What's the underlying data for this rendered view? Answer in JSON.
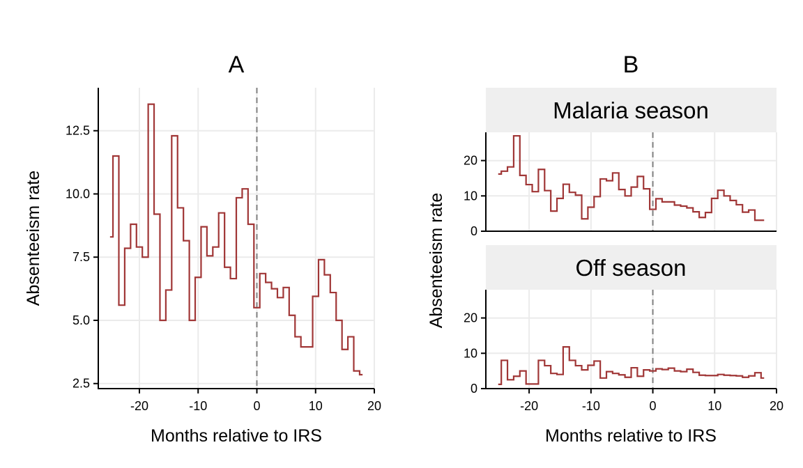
{
  "colors": {
    "series": "#a03636",
    "strip_bg": "#efefef",
    "reference_line": "#7f7f7f",
    "grid": "#ebebeb"
  },
  "chart_data": [
    {
      "type": "line",
      "style": "step",
      "title": "A",
      "xlabel": "Months relative to IRS",
      "ylabel": "Absenteeism rate",
      "xlim": [
        -27,
        20
      ],
      "ylim": [
        2.3,
        14.2
      ],
      "xticks": [
        -20,
        -10,
        0,
        10,
        20
      ],
      "xtick_labels": [
        "-20",
        "-10",
        "0",
        "10",
        "20"
      ],
      "yticks": [
        2.5,
        5.0,
        7.5,
        10.0,
        12.5
      ],
      "ytick_labels": [
        "2.5",
        "5.0",
        "7.5",
        "10.0",
        "12.5"
      ],
      "reference_line": {
        "x": 0,
        "style": "dashed"
      },
      "grid": true,
      "x": [
        -25,
        -24,
        -23,
        -22,
        -21,
        -20,
        -19,
        -18,
        -17,
        -16,
        -15,
        -14,
        -13,
        -12,
        -11,
        -10,
        -9,
        -8,
        -7,
        -6,
        -5,
        -4,
        -3,
        -2,
        -1,
        0,
        1,
        2,
        3,
        4,
        5,
        6,
        7,
        8,
        9,
        10,
        11,
        12,
        13,
        14,
        15,
        16,
        17,
        18
      ],
      "values": [
        8.3,
        11.5,
        5.6,
        7.85,
        8.8,
        7.9,
        7.5,
        13.55,
        9.2,
        5.0,
        6.2,
        12.3,
        9.45,
        8.15,
        5.0,
        6.7,
        8.7,
        7.55,
        7.9,
        9.25,
        7.1,
        6.65,
        9.85,
        10.2,
        8.8,
        5.5,
        6.85,
        6.5,
        6.25,
        5.9,
        6.3,
        5.2,
        4.35,
        3.95,
        3.95,
        5.95,
        7.4,
        6.8,
        6.1,
        5.0,
        3.85,
        4.35,
        3.0,
        2.85
      ]
    },
    {
      "type": "line",
      "style": "step",
      "title": "B",
      "xlabel": "Months relative to IRS",
      "ylabel": "Absenteeism rate",
      "xlim": [
        -27,
        20
      ],
      "ylim": [
        0,
        28
      ],
      "xticks": [
        -20,
        -10,
        0,
        10,
        20
      ],
      "xtick_labels": [
        "-20",
        "-10",
        "0",
        "10",
        "20"
      ],
      "yticks": [
        0,
        10,
        20
      ],
      "ytick_labels": [
        "0",
        "10",
        "20"
      ],
      "reference_line": {
        "x": 0,
        "style": "dashed"
      },
      "grid": true,
      "facets": [
        {
          "label": "Malaria season",
          "x": [
            -25,
            -24,
            -23,
            -22,
            -21,
            -20,
            -19,
            -18,
            -17,
            -16,
            -15,
            -14,
            -13,
            -12,
            -11,
            -10,
            -9,
            -8,
            -7,
            -6,
            -5,
            -4,
            -3,
            -2,
            -1,
            0,
            1,
            2,
            3,
            4,
            5,
            6,
            7,
            8,
            9,
            10,
            11,
            12,
            13,
            14,
            15,
            16,
            17,
            18
          ],
          "values": [
            16.2,
            17.0,
            18.2,
            27.0,
            15.8,
            13.2,
            11.2,
            17.5,
            11.5,
            5.7,
            9.3,
            13.3,
            11.0,
            10.2,
            3.5,
            6.8,
            9.8,
            14.8,
            14.3,
            16.5,
            11.8,
            10.0,
            12.5,
            15.5,
            12.0,
            6.2,
            9.2,
            8.3,
            8.3,
            7.4,
            7.1,
            6.6,
            5.5,
            3.9,
            5.3,
            9.3,
            11.6,
            10.0,
            8.7,
            7.5,
            5.4,
            6.0,
            3.1,
            3.1
          ]
        },
        {
          "label": "Off season",
          "x": [
            -25,
            -24,
            -23,
            -22,
            -21,
            -20,
            -19,
            -18,
            -17,
            -16,
            -15,
            -14,
            -13,
            -12,
            -11,
            -10,
            -9,
            -8,
            -7,
            -6,
            -5,
            -4,
            -3,
            -2,
            -1,
            0,
            1,
            2,
            3,
            4,
            5,
            6,
            7,
            8,
            9,
            10,
            11,
            12,
            13,
            14,
            15,
            16,
            17,
            18
          ],
          "values": [
            1.2,
            8.0,
            2.5,
            3.5,
            5.0,
            1.3,
            1.3,
            8.0,
            6.5,
            4.3,
            4.0,
            11.8,
            8.0,
            6.5,
            5.3,
            6.6,
            7.8,
            3.0,
            4.8,
            4.3,
            3.9,
            3.2,
            5.9,
            3.5,
            5.3,
            5.0,
            5.6,
            5.4,
            5.8,
            5.0,
            4.8,
            5.5,
            4.6,
            3.8,
            3.7,
            3.7,
            4.0,
            3.8,
            3.7,
            3.6,
            3.2,
            3.6,
            4.5,
            3.0
          ]
        }
      ]
    }
  ]
}
